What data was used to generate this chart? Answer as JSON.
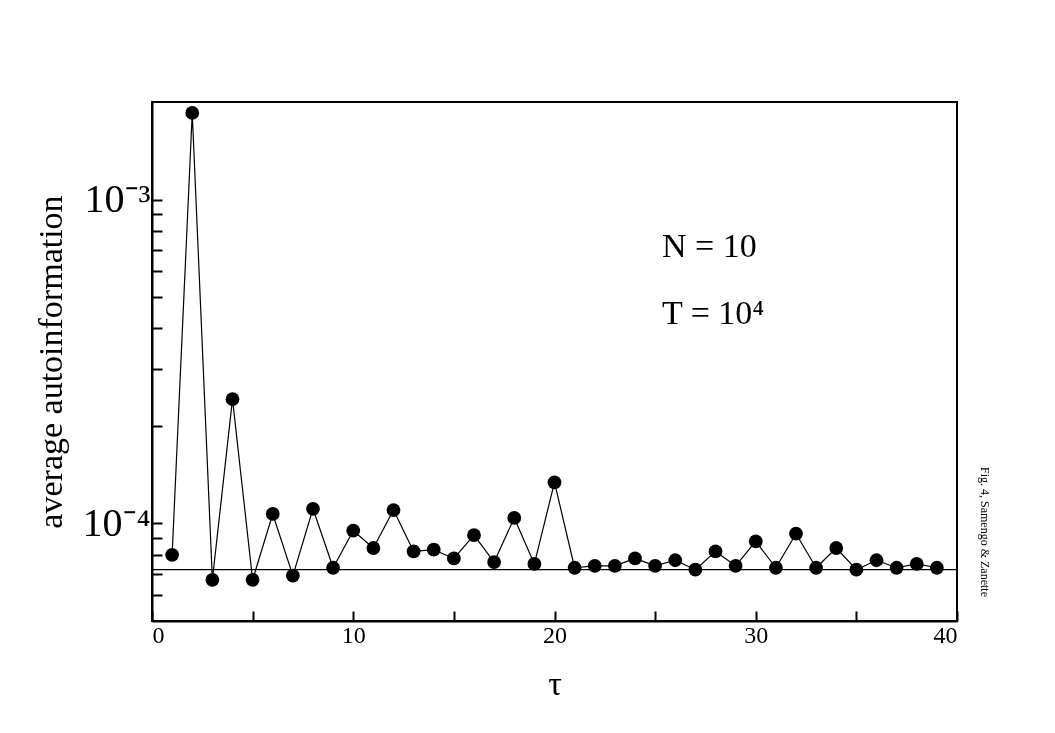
{
  "chart_data": {
    "type": "line",
    "xlabel": "τ",
    "ylabel": "average autoinformation",
    "annotations": [
      "N = 10",
      "T = 10⁴",
      "Fig. 4, Samengo & Zanette"
    ],
    "x": [
      1,
      2,
      3,
      4,
      5,
      6,
      7,
      8,
      9,
      10,
      11,
      12,
      13,
      14,
      15,
      16,
      17,
      18,
      19,
      20,
      21,
      22,
      23,
      24,
      25,
      26,
      27,
      28,
      29,
      30,
      31,
      32,
      33,
      34,
      35,
      36,
      37,
      38,
      39
    ],
    "series": [
      {
        "color": "#000000",
        "values": [
          8e-05,
          0.00185,
          6.7e-05,
          0.000242,
          6.7e-05,
          0.000107,
          6.9e-05,
          0.000111,
          7.3e-05,
          9.5e-05,
          8.4e-05,
          0.00011,
          8.2e-05,
          8.3e-05,
          7.8e-05,
          9.2e-05,
          7.6e-05,
          0.000104,
          7.5e-05,
          0.000134,
          7.3e-05,
          7.4e-05,
          7.4e-05,
          7.8e-05,
          7.4e-05,
          7.7e-05,
          7.2e-05,
          8.2e-05,
          7.4e-05,
          8.8e-05,
          7.3e-05,
          9.3e-05,
          7.3e-05,
          8.4e-05,
          7.2e-05,
          7.7e-05,
          7.3e-05,
          7.5e-05,
          7.3e-05
        ]
      }
    ],
    "log": "y",
    "xlim": [
      0,
      40
    ],
    "ylim": [
      5e-05,
      0.002
    ],
    "xticks": [
      0,
      {
        "value": 5,
        "label": null
      },
      10,
      {
        "value": 15,
        "label": null
      },
      20,
      {
        "value": 25,
        "label": null
      },
      30,
      {
        "value": 35,
        "label": null
      },
      40
    ],
    "yticks": [
      {
        "value": 6e-05,
        "label": null
      },
      {
        "value": 7e-05,
        "label": null
      },
      {
        "value": 8e-05,
        "label": null
      },
      {
        "value": 9e-05,
        "label": null
      },
      {
        "value": 0.0001,
        "label": "10⁻⁴"
      },
      {
        "value": 0.0002,
        "label": null
      },
      {
        "value": 0.0003,
        "label": null
      },
      {
        "value": 0.0004,
        "label": null
      },
      {
        "value": 0.0005,
        "label": null
      },
      {
        "value": 0.0006,
        "label": null
      },
      {
        "value": 0.0007,
        "label": null
      },
      {
        "value": 0.0008,
        "label": null
      },
      {
        "value": 0.0009,
        "label": null
      },
      {
        "value": 0.001,
        "label": "10⁻³"
      }
    ],
    "ref_lines": [
      {
        "axis": "y",
        "value": 7.2e-05
      }
    ],
    "grid": false,
    "marker": "circle",
    "line_style": "solid"
  }
}
